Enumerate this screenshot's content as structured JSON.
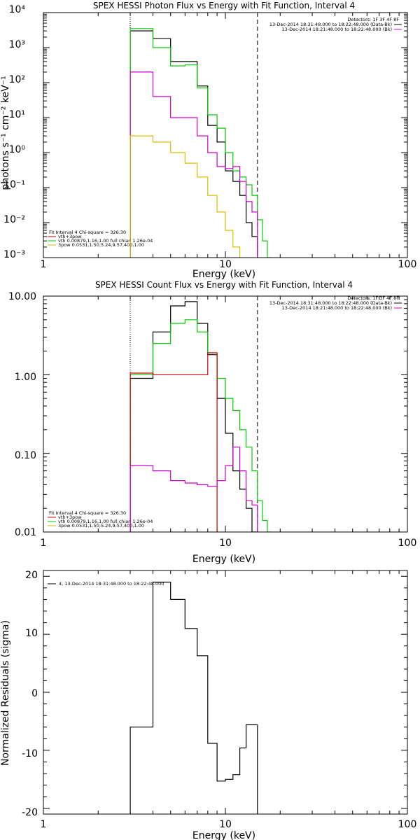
{
  "colors": {
    "data": "#000000",
    "total": "#00cc00",
    "vth": "#cc0000",
    "pow": "#ddbb00",
    "bk": "#cc00cc"
  },
  "chart_data": [
    {
      "type": "line",
      "title": "SPEX HESSI Photon Flux vs Energy with Fit Function, Interval 4",
      "xlabel": "Energy (keV)",
      "ylabel": "photons s⁻¹ cm⁻² keV⁻¹",
      "xscale": "log",
      "yscale": "log",
      "xlim": [
        1,
        100
      ],
      "ylim": [
        0.001,
        10000
      ],
      "x_ticks": [
        "1",
        "10",
        "100"
      ],
      "y_ticks": [
        "10⁻³",
        "10⁻²",
        "10⁻¹",
        "10⁰",
        "10¹",
        "10²",
        "10³",
        "10⁴"
      ],
      "fit_range_keV": [
        3.0,
        15.0
      ],
      "info_lines": [
        "Detectors: 1F 3F 4F 8F",
        "13-Dec-2014 18:31:48.000 to 18:22:48.000 (Data-Bk)",
        "13-Dec-2014 18:21:48.000 to 18:22:48.000 (Bk)"
      ],
      "legend": [
        "Fit Interval 4   Chi-square = 326.30",
        "vth+3pow",
        "vth 0.00879,1.16,1.00  full chian 1.26e-04",
        "3pow 0.0531,1.50,5.24,9.57,400,1.00"
      ],
      "series": [
        {
          "color_key": "data",
          "edges": [
            3,
            4,
            5,
            6,
            7,
            8,
            9,
            10,
            11,
            12,
            13,
            14,
            15
          ],
          "values": [
            3000,
            1800,
            400,
            400,
            80,
            6,
            2,
            0.3,
            0.15,
            0.06,
            0.01,
            0.004
          ]
        },
        {
          "color_key": "total",
          "edges": [
            3,
            4,
            5,
            6,
            7,
            8,
            9,
            10,
            11,
            12,
            13,
            14,
            15,
            16,
            17,
            18
          ],
          "values": [
            3500,
            1000,
            300,
            320,
            70,
            12,
            5,
            1,
            0.3,
            0.2,
            0.12,
            0.06,
            0.012,
            0.003,
            0.001
          ]
        },
        {
          "color_key": "bk",
          "edges": [
            3,
            4,
            5,
            6,
            7,
            8,
            9,
            10,
            11,
            12,
            13,
            14,
            15
          ],
          "values": [
            200,
            40,
            10,
            10,
            3,
            1,
            0.4,
            0.35,
            0.4,
            0.15,
            0.04,
            0.02
          ]
        },
        {
          "color_key": "pow",
          "edges": [
            3,
            4,
            5,
            6,
            7,
            8,
            9,
            10,
            11,
            12
          ],
          "values": [
            3,
            2,
            1,
            0.5,
            0.2,
            0.06,
            0.02,
            0.006,
            0.002
          ]
        }
      ]
    },
    {
      "type": "line",
      "title": "SPEX HESSI Count Flux vs Energy with Fit Function, Interval 4",
      "xlabel": "Energy (keV)",
      "xscale": "log",
      "yscale": "log",
      "xlim": [
        1,
        100
      ],
      "ylim": [
        0.01,
        10
      ],
      "x_ticks": [
        "1",
        "10",
        "100"
      ],
      "y_ticks": [
        "0.01",
        "0.10",
        "1.00",
        "10.00"
      ],
      "fit_range_keV": [
        3.0,
        15.0
      ],
      "info_lines": [
        "Detectors: 1F 3F 4F 8F",
        "13-Dec-2014 18:31:48.000 to 18:22:48.000 (Data-Bk)",
        "13-Dec-2014 18:21:48.000 to 18:22:48.000 (Bk)"
      ],
      "legend": [
        "Fit Interval 4   Chi-square = 326.30",
        "vth+3pow",
        "vth 0.00879,1.16,1.00  full chian 1.26e-04",
        "3pow 0.0531,1.50,5.24,9.57,400,1.00"
      ],
      "series": [
        {
          "color_key": "data",
          "edges": [
            3,
            4,
            5,
            6,
            7,
            8,
            9,
            10,
            11,
            12,
            13,
            14,
            15
          ],
          "values": [
            0.9,
            3.5,
            7.5,
            8.5,
            4.5,
            1.8,
            0.5,
            0.18,
            0.06,
            0.035,
            0.02,
            0.01
          ]
        },
        {
          "color_key": "total",
          "edges": [
            3,
            4,
            5,
            6,
            7,
            8,
            9,
            10,
            11,
            12,
            13,
            14,
            15,
            16,
            17,
            18
          ],
          "values": [
            1.0,
            2.5,
            4.5,
            5.0,
            3.5,
            1.9,
            0.9,
            0.5,
            0.35,
            0.2,
            0.12,
            0.06,
            0.025,
            0.014,
            0.01
          ]
        },
        {
          "color_key": "vth",
          "edges": [
            3,
            4,
            8,
            9
          ],
          "values": [
            1.05,
            1.0,
            1.9
          ]
        },
        {
          "color_key": "bk",
          "edges": [
            3,
            4,
            5,
            6,
            7,
            8,
            9,
            10,
            11,
            12,
            13,
            14,
            15
          ],
          "values": [
            0.07,
            0.06,
            0.045,
            0.042,
            0.04,
            0.038,
            0.045,
            0.07,
            0.12,
            0.06,
            0.025,
            0.022
          ]
        }
      ]
    },
    {
      "type": "line",
      "xlabel": "Energy (keV)",
      "ylabel": "Normalized Residuals (sigma)",
      "xscale": "log",
      "yscale": "linear",
      "xlim": [
        1,
        100
      ],
      "ylim": [
        -21,
        21
      ],
      "x_ticks": [
        "1",
        "10",
        "100"
      ],
      "y_ticks": [
        "-20",
        "-10",
        "0",
        "10",
        "20"
      ],
      "legend": [
        "4, 13-Dec-2014 18:31:48.000 to 18:22:48.000"
      ],
      "series": [
        {
          "color_key": "data",
          "edges": [
            3,
            4,
            5,
            6,
            7,
            8,
            9,
            10,
            11,
            12,
            13,
            14,
            15
          ],
          "values": [
            -6,
            19,
            16,
            11,
            6.3,
            -8.8,
            -15.3,
            -15,
            -14.2,
            -9.6,
            -5.6,
            -5.6
          ]
        }
      ]
    }
  ]
}
